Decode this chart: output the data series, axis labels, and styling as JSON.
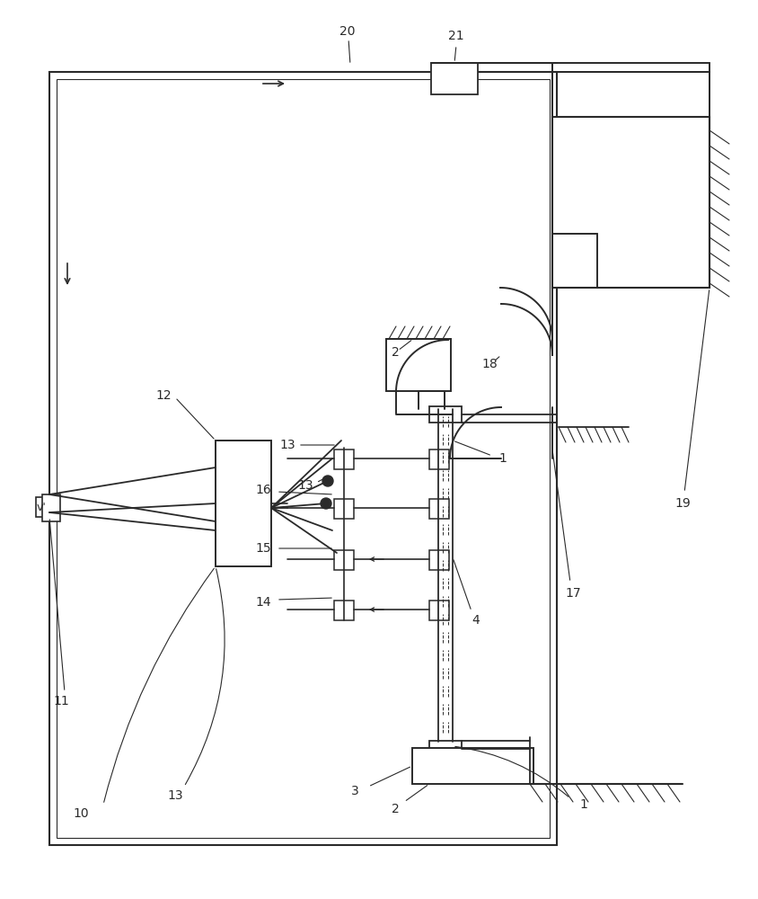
{
  "bg_color": "#ffffff",
  "line_color": "#2a2a2a",
  "lw_main": 1.4,
  "lw_thin": 0.9,
  "fig_width": 8.45,
  "fig_height": 10.0
}
